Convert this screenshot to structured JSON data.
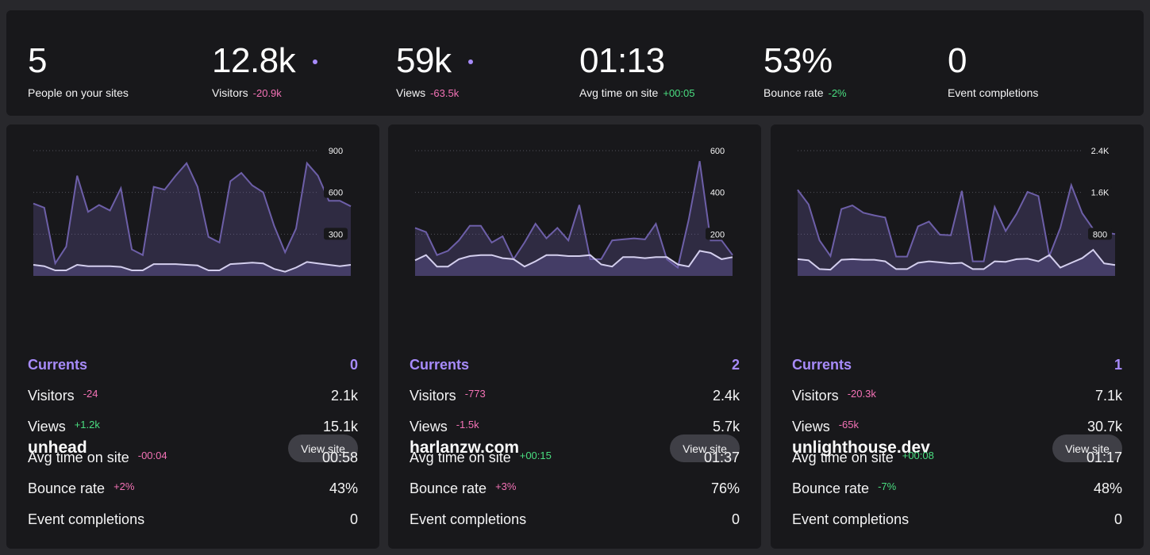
{
  "summary": {
    "stats": [
      {
        "value": "5",
        "label": "People on your sites",
        "delta": "",
        "delta_sign": "",
        "dot": false
      },
      {
        "value": "12.8k",
        "label": "Visitors",
        "delta": "-20.9k",
        "delta_sign": "neg",
        "dot": true
      },
      {
        "value": "59k",
        "label": "Views",
        "delta": "-63.5k",
        "delta_sign": "neg",
        "dot": true
      },
      {
        "value": "01:13",
        "label": "Avg time on site",
        "delta": "+00:05",
        "delta_sign": "pos",
        "dot": false
      },
      {
        "value": "53%",
        "label": "Bounce rate",
        "delta": "-2%",
        "delta_sign": "pos",
        "dot": false
      },
      {
        "value": "0",
        "label": "Event completions",
        "delta": "",
        "delta_sign": "",
        "dot": false
      }
    ]
  },
  "colors": {
    "background": "#28282c",
    "card": "#18181b",
    "accent": "#a78bfa",
    "negative": "#f472b6",
    "positive": "#4ade80",
    "line_views": "#6d5fa8",
    "line_visitors": "#d4cfee"
  },
  "view_site_label": "View site",
  "sites": [
    {
      "name": "unhead",
      "currents_label": "Currents",
      "currents": "0",
      "rows": [
        {
          "label": "Visitors",
          "delta": "-24",
          "sign": "neg",
          "value": "2.1k"
        },
        {
          "label": "Views",
          "delta": "+1.2k",
          "sign": "pos",
          "value": "15.1k"
        },
        {
          "label": "Avg time on site",
          "delta": "-00:04",
          "sign": "neg",
          "value": "00:58"
        },
        {
          "label": "Bounce rate",
          "delta": "+2%",
          "sign": "neg",
          "value": "43%"
        },
        {
          "label": "Event completions",
          "delta": "",
          "sign": "",
          "value": "0"
        }
      ],
      "chart_data": {
        "type": "area",
        "ylim": [
          0,
          900
        ],
        "y_ticks": [
          "900",
          "600",
          "300"
        ],
        "series": [
          {
            "values": [
              520,
              490,
              90,
              210,
              720,
              460,
              510,
              470,
              630,
              190,
              150,
              640,
              620,
              720,
              810,
              640,
              280,
              240,
              680,
              740,
              650,
              600,
              360,
              170,
              340,
              810,
              720,
              540,
              540,
              500
            ]
          },
          {
            "values": [
              80,
              70,
              40,
              40,
              80,
              70,
              70,
              70,
              65,
              40,
              40,
              85,
              85,
              85,
              80,
              75,
              40,
              40,
              85,
              90,
              95,
              90,
              50,
              30,
              60,
              100,
              90,
              80,
              70,
              80
            ]
          }
        ]
      }
    },
    {
      "name": "harlanzw.com",
      "currents_label": "Currents",
      "currents": "2",
      "rows": [
        {
          "label": "Visitors",
          "delta": "-773",
          "sign": "neg",
          "value": "2.4k"
        },
        {
          "label": "Views",
          "delta": "-1.5k",
          "sign": "neg",
          "value": "5.7k"
        },
        {
          "label": "Avg time on site",
          "delta": "+00:15",
          "sign": "pos",
          "value": "01:37"
        },
        {
          "label": "Bounce rate",
          "delta": "+3%",
          "sign": "neg",
          "value": "76%"
        },
        {
          "label": "Event completions",
          "delta": "",
          "sign": "",
          "value": "0"
        }
      ],
      "chart_data": {
        "type": "area",
        "ylim": [
          0,
          600
        ],
        "y_ticks": [
          "600",
          "400",
          "200"
        ],
        "series": [
          {
            "values": [
              230,
              210,
              100,
              120,
              170,
              240,
              240,
              160,
              190,
              80,
              160,
              250,
              180,
              230,
              170,
              340,
              80,
              80,
              170,
              175,
              180,
              175,
              250,
              80,
              40,
              270,
              550,
              170,
              170,
              100
            ]
          },
          {
            "values": [
              75,
              100,
              45,
              45,
              80,
              95,
              100,
              100,
              85,
              80,
              45,
              70,
              100,
              100,
              95,
              95,
              100,
              55,
              45,
              90,
              90,
              85,
              90,
              90,
              55,
              45,
              120,
              110,
              80,
              90
            ]
          }
        ]
      }
    },
    {
      "name": "unlighthouse.dev",
      "currents_label": "Currents",
      "currents": "1",
      "rows": [
        {
          "label": "Visitors",
          "delta": "-20.3k",
          "sign": "neg",
          "value": "7.1k"
        },
        {
          "label": "Views",
          "delta": "-65k",
          "sign": "neg",
          "value": "30.7k"
        },
        {
          "label": "Avg time on site",
          "delta": "+00:08",
          "sign": "pos",
          "value": "01:17"
        },
        {
          "label": "Bounce rate",
          "delta": "-7%",
          "sign": "pos",
          "value": "48%"
        },
        {
          "label": "Event completions",
          "delta": "",
          "sign": "",
          "value": "0"
        }
      ],
      "chart_data": {
        "type": "area",
        "ylim": [
          0,
          2400
        ],
        "y_ticks": [
          "2.4K",
          "1.6K",
          "800"
        ],
        "series": [
          {
            "values": [
              1650,
              1370,
              680,
              380,
              1280,
              1350,
              1210,
              1160,
              1120,
              370,
              370,
              950,
              1040,
              790,
              780,
              1630,
              280,
              280,
              1320,
              860,
              1190,
              1610,
              1530,
              380,
              920,
              1740,
              1200,
              900,
              840,
              800
            ]
          },
          {
            "values": [
              320,
              300,
              130,
              120,
              310,
              320,
              310,
              310,
              280,
              130,
              130,
              250,
              280,
              260,
              240,
              250,
              130,
              130,
              280,
              270,
              320,
              330,
              280,
              400,
              160,
              250,
              340,
              500,
              240,
              210
            ]
          }
        ]
      }
    }
  ]
}
